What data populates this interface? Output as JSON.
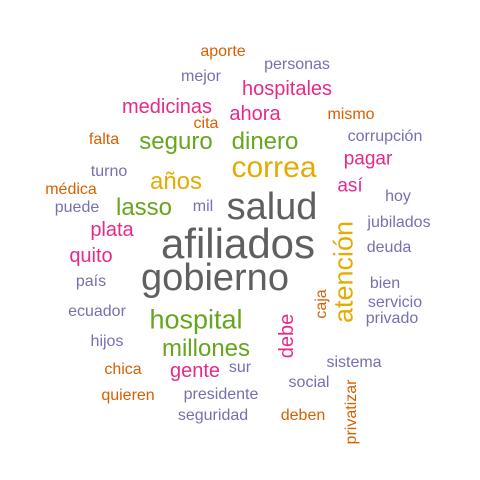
{
  "colors": {
    "gray": "#5f5f5f",
    "orange": "#d95f02",
    "purple": "#7570b3",
    "pink": "#e7298a",
    "green": "#66a61e",
    "gold": "#e6ab02"
  },
  "words": [
    {
      "text": "afiliados",
      "color": "gray"
    },
    {
      "text": "gobierno",
      "color": "gray"
    },
    {
      "text": "salud",
      "color": "gray"
    },
    {
      "text": "atención",
      "color": "gold"
    },
    {
      "text": "correa",
      "color": "gold"
    },
    {
      "text": "hospital",
      "color": "green"
    },
    {
      "text": "millones",
      "color": "green"
    },
    {
      "text": "seguro",
      "color": "green"
    },
    {
      "text": "dinero",
      "color": "green"
    },
    {
      "text": "lasso",
      "color": "green"
    },
    {
      "text": "años",
      "color": "gold"
    },
    {
      "text": "medicinas",
      "color": "pink"
    },
    {
      "text": "hospitales",
      "color": "pink"
    },
    {
      "text": "ahora",
      "color": "pink"
    },
    {
      "text": "plata",
      "color": "pink"
    },
    {
      "text": "quito",
      "color": "pink"
    },
    {
      "text": "gente",
      "color": "pink"
    },
    {
      "text": "debe",
      "color": "pink"
    },
    {
      "text": "pagar",
      "color": "pink"
    },
    {
      "text": "así",
      "color": "pink"
    },
    {
      "text": "aporte",
      "color": "orange"
    },
    {
      "text": "personas",
      "color": "purple"
    },
    {
      "text": "mejor",
      "color": "purple"
    },
    {
      "text": "cita",
      "color": "orange"
    },
    {
      "text": "mismo",
      "color": "orange"
    },
    {
      "text": "falta",
      "color": "orange"
    },
    {
      "text": "corrupción",
      "color": "purple"
    },
    {
      "text": "turno",
      "color": "purple"
    },
    {
      "text": "médica",
      "color": "orange"
    },
    {
      "text": "hoy",
      "color": "purple"
    },
    {
      "text": "puede",
      "color": "purple"
    },
    {
      "text": "mil",
      "color": "purple"
    },
    {
      "text": "jubilados",
      "color": "purple"
    },
    {
      "text": "deuda",
      "color": "purple"
    },
    {
      "text": "país",
      "color": "purple"
    },
    {
      "text": "bien",
      "color": "purple"
    },
    {
      "text": "caja",
      "color": "orange"
    },
    {
      "text": "servicio",
      "color": "purple"
    },
    {
      "text": "ecuador",
      "color": "purple"
    },
    {
      "text": "privado",
      "color": "purple"
    },
    {
      "text": "hijos",
      "color": "purple"
    },
    {
      "text": "sistema",
      "color": "purple"
    },
    {
      "text": "chica",
      "color": "orange"
    },
    {
      "text": "sur",
      "color": "purple"
    },
    {
      "text": "social",
      "color": "purple"
    },
    {
      "text": "quieren",
      "color": "orange"
    },
    {
      "text": "presidente",
      "color": "purple"
    },
    {
      "text": "privatizar",
      "color": "orange"
    },
    {
      "text": "seguridad",
      "color": "purple"
    },
    {
      "text": "deben",
      "color": "orange"
    }
  ]
}
